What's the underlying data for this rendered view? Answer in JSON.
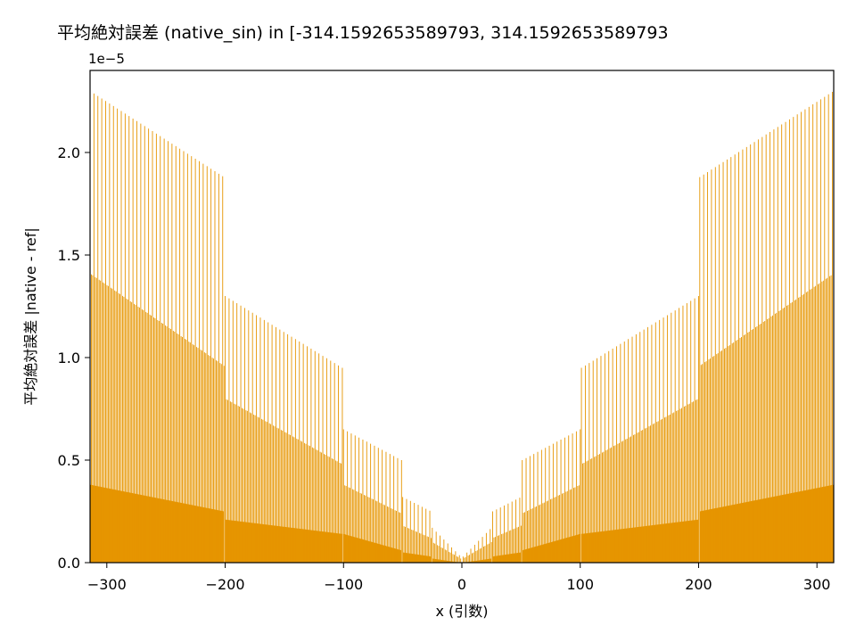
{
  "chart_data": {
    "type": "bar",
    "title": "平均絶対誤差 (native_sin) in [-314.1592653589793, 314.1592653589793",
    "xlabel": "x (引数)",
    "ylabel": "平均絶対誤差 |native - ref|",
    "y_offset_label": "1e−5",
    "xlim": [
      -314.1592653589793,
      314.1592653589793
    ],
    "ylim": [
      0,
      2.4
    ],
    "y_scale": "1e-5",
    "grid": false,
    "color": "#e69500",
    "x_ticks": [
      -300,
      -200,
      -100,
      0,
      100,
      200,
      300
    ],
    "x_tick_labels": [
      "−300",
      "−200",
      "−100",
      "0",
      "100",
      "200",
      "300"
    ],
    "y_ticks": [
      0.0,
      0.5,
      1.0,
      1.5,
      2.0
    ],
    "y_tick_labels": [
      "0.0",
      "0.5",
      "1.0",
      "1.5",
      "2.0"
    ],
    "envelope_segments": [
      {
        "x_range": [
          -314.16,
          -201
        ],
        "band_low": [
          0.38,
          0.25
        ],
        "band_mid": [
          1.41,
          0.96
        ],
        "band_high": [
          2.3,
          1.88
        ]
      },
      {
        "x_range": [
          -200,
          -101
        ],
        "band_low": [
          0.21,
          0.14
        ],
        "band_mid": [
          0.8,
          0.48
        ],
        "band_high": [
          1.3,
          0.95
        ]
      },
      {
        "x_range": [
          -100,
          -51
        ],
        "band_low": [
          0.14,
          0.06
        ],
        "band_mid": [
          0.38,
          0.24
        ],
        "band_high": [
          0.65,
          0.5
        ]
      },
      {
        "x_range": [
          -50,
          -26
        ],
        "band_low": [
          0.05,
          0.03
        ],
        "band_mid": [
          0.18,
          0.12
        ],
        "band_high": [
          0.32,
          0.25
        ]
      },
      {
        "x_range": [
          -25,
          -1
        ],
        "band_low": [
          0.02,
          0.0
        ],
        "band_mid": [
          0.1,
          0.02
        ],
        "band_high": [
          0.17,
          0.03
        ]
      },
      {
        "x_range": [
          1,
          25
        ],
        "band_low": [
          0.0,
          0.02
        ],
        "band_mid": [
          0.02,
          0.1
        ],
        "band_high": [
          0.03,
          0.17
        ]
      },
      {
        "x_range": [
          26,
          50
        ],
        "band_low": [
          0.03,
          0.05
        ],
        "band_mid": [
          0.12,
          0.18
        ],
        "band_high": [
          0.25,
          0.32
        ]
      },
      {
        "x_range": [
          51,
          100
        ],
        "band_low": [
          0.06,
          0.14
        ],
        "band_mid": [
          0.24,
          0.38
        ],
        "band_high": [
          0.5,
          0.65
        ]
      },
      {
        "x_range": [
          101,
          200
        ],
        "band_low": [
          0.14,
          0.21
        ],
        "band_mid": [
          0.48,
          0.8
        ],
        "band_high": [
          0.95,
          1.3
        ]
      },
      {
        "x_range": [
          201,
          314.16
        ],
        "band_low": [
          0.25,
          0.38
        ],
        "band_mid": [
          0.96,
          1.41
        ],
        "band_high": [
          1.88,
          2.3
        ]
      }
    ]
  }
}
